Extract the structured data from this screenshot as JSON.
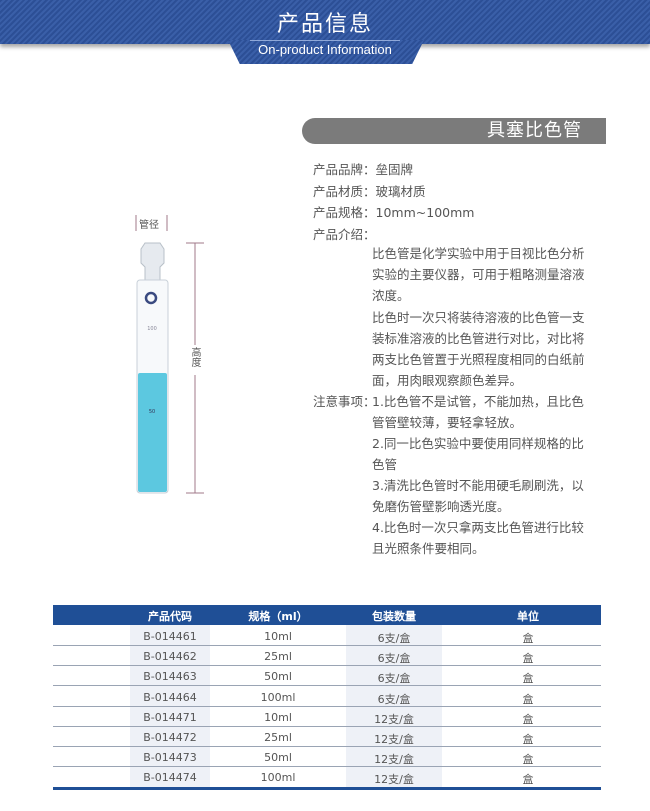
{
  "banner": {
    "title": "产品信息",
    "subtitle": "On-product Information"
  },
  "product": {
    "name": "具塞比色管",
    "fields": [
      {
        "label": "产品品牌：",
        "value": "垒固牌"
      },
      {
        "label": "产品材质：",
        "value": "玻璃材质"
      },
      {
        "label": "产品规格：",
        "value": "10mm~100mm"
      },
      {
        "label": "产品介绍：",
        "value": ""
      }
    ],
    "intro": [
      "比色管是化学实验中用于目视比色分析",
      "实验的主要仪器，可用于粗略测量溶液",
      "浓度。",
      "比色时一次只将装待溶液的比色管一支",
      "装标准溶液的比色管进行对比，对比将",
      "两支比色管置于光照程度相同的白纸前",
      "面，用肉眼观察颜色差异。"
    ],
    "notes_label": "注意事项：",
    "notes": [
      "1.比色管不是试管，不能加热，且比色",
      "管管壁较薄，要轻拿轻放。",
      "2.同一比色实验中要使用同样规格的比",
      "色管",
      "3.清洗比色管时不能用硬毛刷刷洗，以",
      "免磨伤管壁影响透光度。",
      "4.比色时一次只拿两支比色管进行比较",
      "且光照条件要相同。"
    ]
  },
  "diagram": {
    "diameter_label": "管径",
    "height_label": "高度",
    "mark_top": "100",
    "mark_mid": "50",
    "liquid_color": "#5cc8e0"
  },
  "table": {
    "headers": [
      "产品代码",
      "规格（ml）",
      "包装数量",
      "单位"
    ],
    "rows": [
      [
        "B-014461",
        "10ml",
        "6支/盒",
        "盒"
      ],
      [
        "B-014462",
        "25ml",
        "6支/盒",
        "盒"
      ],
      [
        "B-014463",
        "50ml",
        "6支/盒",
        "盒"
      ],
      [
        "B-014464",
        "100ml",
        "6支/盒",
        "盒"
      ],
      [
        "B-014471",
        "10ml",
        "12支/盒",
        "盒"
      ],
      [
        "B-014472",
        "25ml",
        "12支/盒",
        "盒"
      ],
      [
        "B-014473",
        "50ml",
        "12支/盒",
        "盒"
      ],
      [
        "B-014474",
        "100ml",
        "12支/盒",
        "盒"
      ]
    ],
    "header_color": "#1f4f96"
  }
}
